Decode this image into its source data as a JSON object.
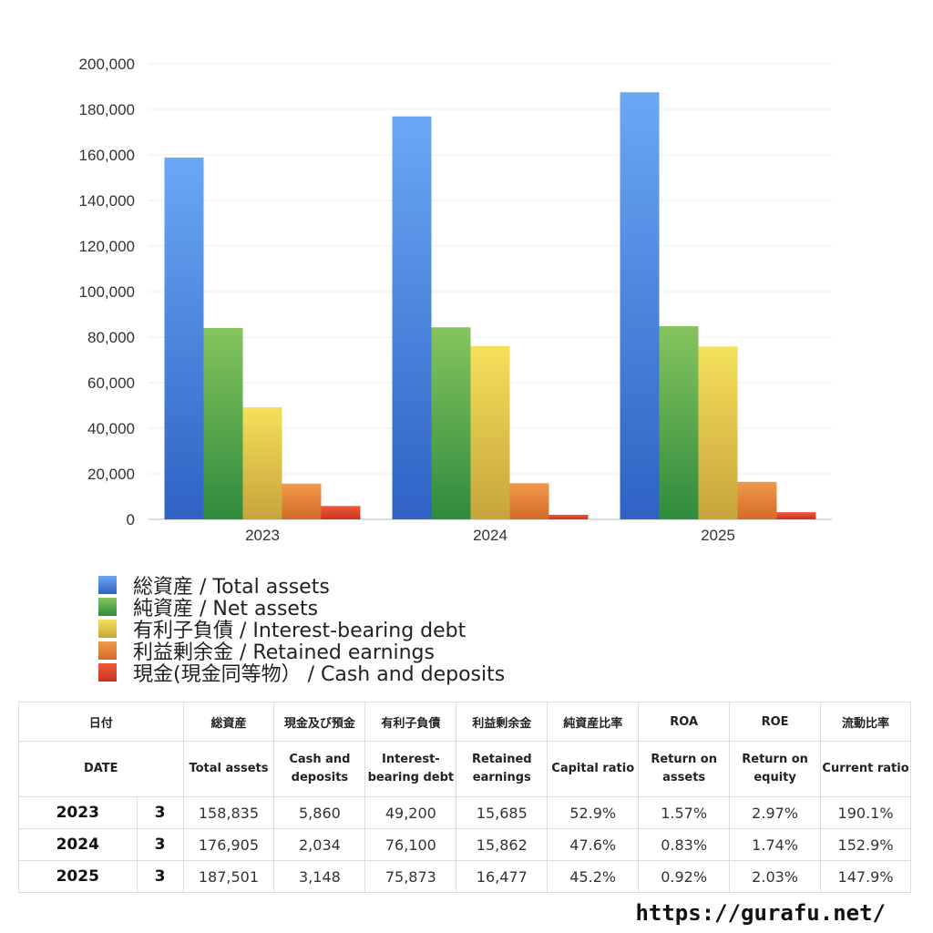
{
  "chart_data": {
    "type": "bar",
    "categories": [
      "2023",
      "2024",
      "2025"
    ],
    "ylim": [
      0,
      200000
    ],
    "yticks": [
      0,
      20000,
      40000,
      60000,
      80000,
      100000,
      120000,
      140000,
      160000,
      180000,
      200000
    ],
    "ytick_labels": [
      "0",
      "20,000",
      "40,000",
      "60,000",
      "80,000",
      "100,000",
      "120,000",
      "140,000",
      "160,000",
      "180,000",
      "200,000"
    ],
    "grid": true,
    "legend_position": "bottom",
    "series": [
      {
        "name": "総資産 / Total assets",
        "values": [
          158835,
          176905,
          187501
        ],
        "color_top": "#6aa8f5",
        "color_bottom": "#2f62c4"
      },
      {
        "name": "純資産 / Net assets",
        "values": [
          84000,
          84300,
          84800
        ],
        "color_top": "#86c45e",
        "color_bottom": "#2f8c3e"
      },
      {
        "name": "有利子負債 / Interest-bearing debt",
        "values": [
          49200,
          76100,
          75873
        ],
        "color_top": "#f4e05a",
        "color_bottom": "#c7a43c"
      },
      {
        "name": "利益剰余金 / Retained earnings",
        "values": [
          15685,
          15862,
          16477
        ],
        "color_top": "#f09a4a",
        "color_bottom": "#d46a28"
      },
      {
        "name": "現金(現金同等物） /  Cash and deposits",
        "values": [
          5860,
          2034,
          3148
        ],
        "color_top": "#ef5a3a",
        "color_bottom": "#c9321e"
      }
    ]
  },
  "table": {
    "headers_ja": [
      "日付",
      "",
      "総資産",
      "現金及び預金",
      "有利子負債",
      "利益剰余金",
      "純資産比率",
      "ROA",
      "ROE",
      "流動比率"
    ],
    "headers_en": [
      "DATE",
      "",
      "Total assets",
      "Cash and deposits",
      "Interest-bearing debt",
      "Retained earnings",
      "Capital ratio",
      "Return on assets",
      "Return on equity",
      "Current ratio"
    ],
    "rows": [
      [
        "2023",
        "3",
        "158,835",
        "5,860",
        "49,200",
        "15,685",
        "52.9%",
        "1.57%",
        "2.97%",
        "190.1%"
      ],
      [
        "2024",
        "3",
        "176,905",
        "2,034",
        "76,100",
        "15,862",
        "47.6%",
        "0.83%",
        "1.74%",
        "152.9%"
      ],
      [
        "2025",
        "3",
        "187,501",
        "3,148",
        "75,873",
        "16,477",
        "45.2%",
        "0.92%",
        "2.03%",
        "147.9%"
      ]
    ]
  },
  "footer": {
    "url": "https://gurafu.net/"
  }
}
